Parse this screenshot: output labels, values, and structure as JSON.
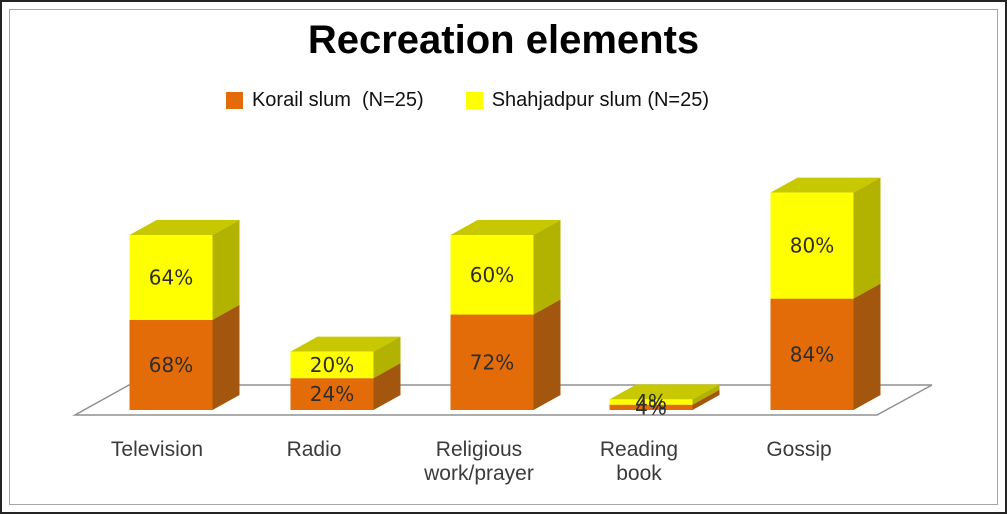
{
  "chart_data": {
    "type": "bar",
    "variant": "3d-stacked-column",
    "title": "Recreation elements",
    "categories": [
      "Television",
      "Radio",
      "Religious work/prayer",
      "Reading book",
      "Gossip"
    ],
    "series": [
      {
        "name": "Korail slum  (N=25)",
        "color": "#E36C09",
        "side_color": "#A3570E",
        "top_color": "#C96208",
        "values": [
          68,
          24,
          72,
          4,
          84
        ]
      },
      {
        "name": "Shahjadpur slum (N=25)",
        "color": "#FFFF00",
        "side_color": "#B2B200",
        "top_color": "#C8C800",
        "values": [
          64,
          20,
          60,
          4,
          80
        ]
      }
    ],
    "value_suffix": "%",
    "legend_position": "top-center",
    "grid": "floor-only",
    "axis_color": "#909090",
    "label_color": "#2e2e2e",
    "ylim": [
      0,
      164
    ]
  }
}
